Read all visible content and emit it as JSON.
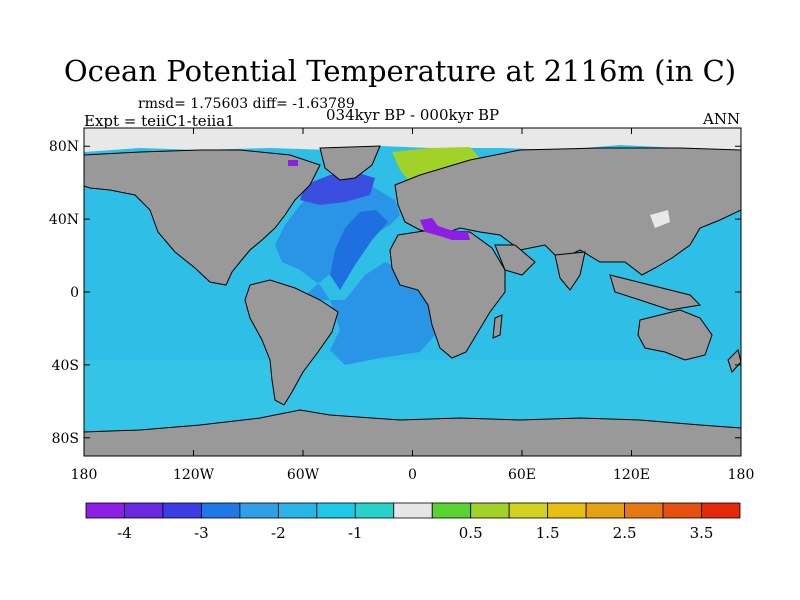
{
  "title": "Ocean Potential Temperature at 2116m (in C)",
  "stats": "rmsd= 1.75603 diff= -1.63789",
  "experiment": "Expt = teiiC1-teiia1",
  "period": "034kyr BP - 000kyr BP",
  "season": "ANN",
  "map": {
    "projection": "cylindrical equidistant",
    "lon_range": [
      -180,
      180
    ],
    "lat_range": [
      -90,
      90
    ],
    "x_ticks": [
      {
        "value": -180,
        "label": "180"
      },
      {
        "value": -120,
        "label": "120W"
      },
      {
        "value": -60,
        "label": "60W"
      },
      {
        "value": 0,
        "label": "0"
      },
      {
        "value": 60,
        "label": "60E"
      },
      {
        "value": 120,
        "label": "120E"
      },
      {
        "value": 180,
        "label": "180"
      }
    ],
    "y_ticks": [
      {
        "value": 80,
        "label": "80N"
      },
      {
        "value": 40,
        "label": "40N"
      },
      {
        "value": 0,
        "label": "0"
      },
      {
        "value": -40,
        "label": "40S"
      },
      {
        "value": -80,
        "label": "80S"
      }
    ],
    "land_color": "#999999",
    "missing_color": "#e8e8e8"
  },
  "colorbar": {
    "levels": [
      -4.5,
      -4,
      -3.5,
      -3,
      -2.5,
      -2,
      -1.5,
      -1,
      -0.5,
      0,
      0.5,
      1,
      1.5,
      2,
      2.5,
      3,
      3.5,
      4
    ],
    "colors": [
      "#8c1ee6",
      "#6a28e0",
      "#3c3ce6",
      "#1e78e6",
      "#2f9fe8",
      "#28b4e6",
      "#1ec8e6",
      "#28d2c8",
      "#e6e6e6",
      "#5ad232",
      "#a0d228",
      "#d2d21e",
      "#e6be14",
      "#e6a014",
      "#e67814",
      "#e6500f",
      "#e6280a"
    ],
    "labels": [
      {
        "value": -4,
        "label": "-4"
      },
      {
        "value": -3,
        "label": "-3"
      },
      {
        "value": -2,
        "label": "-2"
      },
      {
        "value": -1,
        "label": "-1"
      },
      {
        "value": 0.5,
        "label": "0.5"
      },
      {
        "value": 1.5,
        "label": "1.5"
      },
      {
        "value": 2.5,
        "label": "2.5"
      },
      {
        "value": 3.5,
        "label": "3.5"
      }
    ]
  }
}
